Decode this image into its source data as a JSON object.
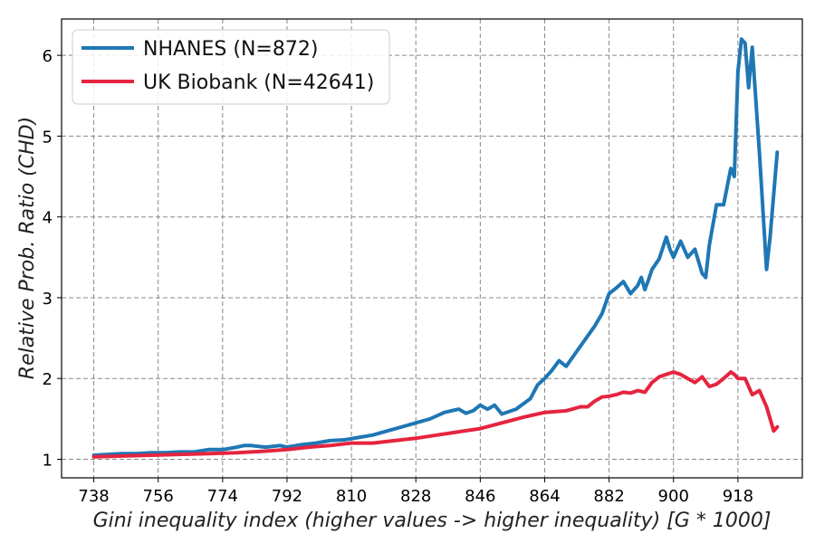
{
  "chart_data": {
    "type": "line",
    "title": "",
    "xlabel": "Gini inequality index (higher values -> higher inequality) [G * 1000]",
    "ylabel": "Relative Prob. Ratio (CHD)",
    "xlim": [
      729,
      936
    ],
    "ylim": [
      0.77,
      6.45
    ],
    "xticks": [
      738,
      756,
      774,
      792,
      810,
      828,
      846,
      864,
      882,
      900,
      918
    ],
    "yticks": [
      1,
      2,
      3,
      4,
      5,
      6
    ],
    "grid": true,
    "legend_position": "top-left",
    "series": [
      {
        "name": "NHANES (N=872)",
        "color": "#1f77b4",
        "x": [
          738,
          742,
          746,
          750,
          754,
          758,
          762,
          766,
          770,
          774,
          778,
          780,
          782,
          786,
          790,
          792,
          796,
          800,
          804,
          808,
          812,
          816,
          820,
          824,
          828,
          832,
          836,
          840,
          842,
          844,
          846,
          848,
          850,
          852,
          856,
          860,
          862,
          864,
          866,
          868,
          870,
          874,
          878,
          880,
          882,
          884,
          886,
          888,
          890,
          891,
          892,
          893,
          894,
          896,
          898,
          899,
          900,
          902,
          904,
          906,
          908,
          909,
          910,
          912,
          914,
          916,
          917,
          918,
          919,
          920,
          921,
          922,
          924,
          926,
          927,
          929
        ],
        "values": [
          1.05,
          1.06,
          1.07,
          1.07,
          1.08,
          1.08,
          1.09,
          1.09,
          1.12,
          1.12,
          1.15,
          1.17,
          1.17,
          1.15,
          1.17,
          1.15,
          1.18,
          1.2,
          1.23,
          1.24,
          1.27,
          1.3,
          1.35,
          1.4,
          1.45,
          1.5,
          1.58,
          1.62,
          1.57,
          1.6,
          1.67,
          1.62,
          1.67,
          1.56,
          1.62,
          1.75,
          1.92,
          2.0,
          2.1,
          2.22,
          2.15,
          2.4,
          2.65,
          2.8,
          3.05,
          3.12,
          3.2,
          3.05,
          3.15,
          3.25,
          3.1,
          3.22,
          3.35,
          3.48,
          3.75,
          3.6,
          3.5,
          3.7,
          3.5,
          3.6,
          3.3,
          3.25,
          3.65,
          4.15,
          4.15,
          4.6,
          4.5,
          5.8,
          6.2,
          6.15,
          5.6,
          6.1,
          4.8,
          3.35,
          3.75,
          4.8
        ]
      },
      {
        "name": "UK Biobank (N=42641)",
        "color": "#e6243f",
        "x": [
          738,
          746,
          754,
          762,
          770,
          778,
          786,
          792,
          798,
          804,
          810,
          816,
          822,
          828,
          834,
          840,
          846,
          852,
          858,
          864,
          870,
          874,
          876,
          878,
          880,
          882,
          884,
          886,
          888,
          890,
          892,
          894,
          896,
          898,
          900,
          902,
          904,
          906,
          908,
          910,
          912,
          914,
          916,
          917,
          918,
          920,
          922,
          924,
          926,
          928,
          929
        ],
        "values": [
          1.03,
          1.04,
          1.05,
          1.06,
          1.07,
          1.08,
          1.1,
          1.12,
          1.15,
          1.17,
          1.2,
          1.2,
          1.23,
          1.26,
          1.3,
          1.34,
          1.38,
          1.45,
          1.52,
          1.58,
          1.6,
          1.65,
          1.65,
          1.72,
          1.77,
          1.78,
          1.8,
          1.83,
          1.82,
          1.85,
          1.83,
          1.95,
          2.02,
          2.05,
          2.08,
          2.05,
          2.0,
          1.95,
          2.02,
          1.9,
          1.93,
          2.0,
          2.08,
          2.05,
          2.0,
          2.0,
          1.8,
          1.85,
          1.65,
          1.35,
          1.4
        ]
      }
    ]
  }
}
